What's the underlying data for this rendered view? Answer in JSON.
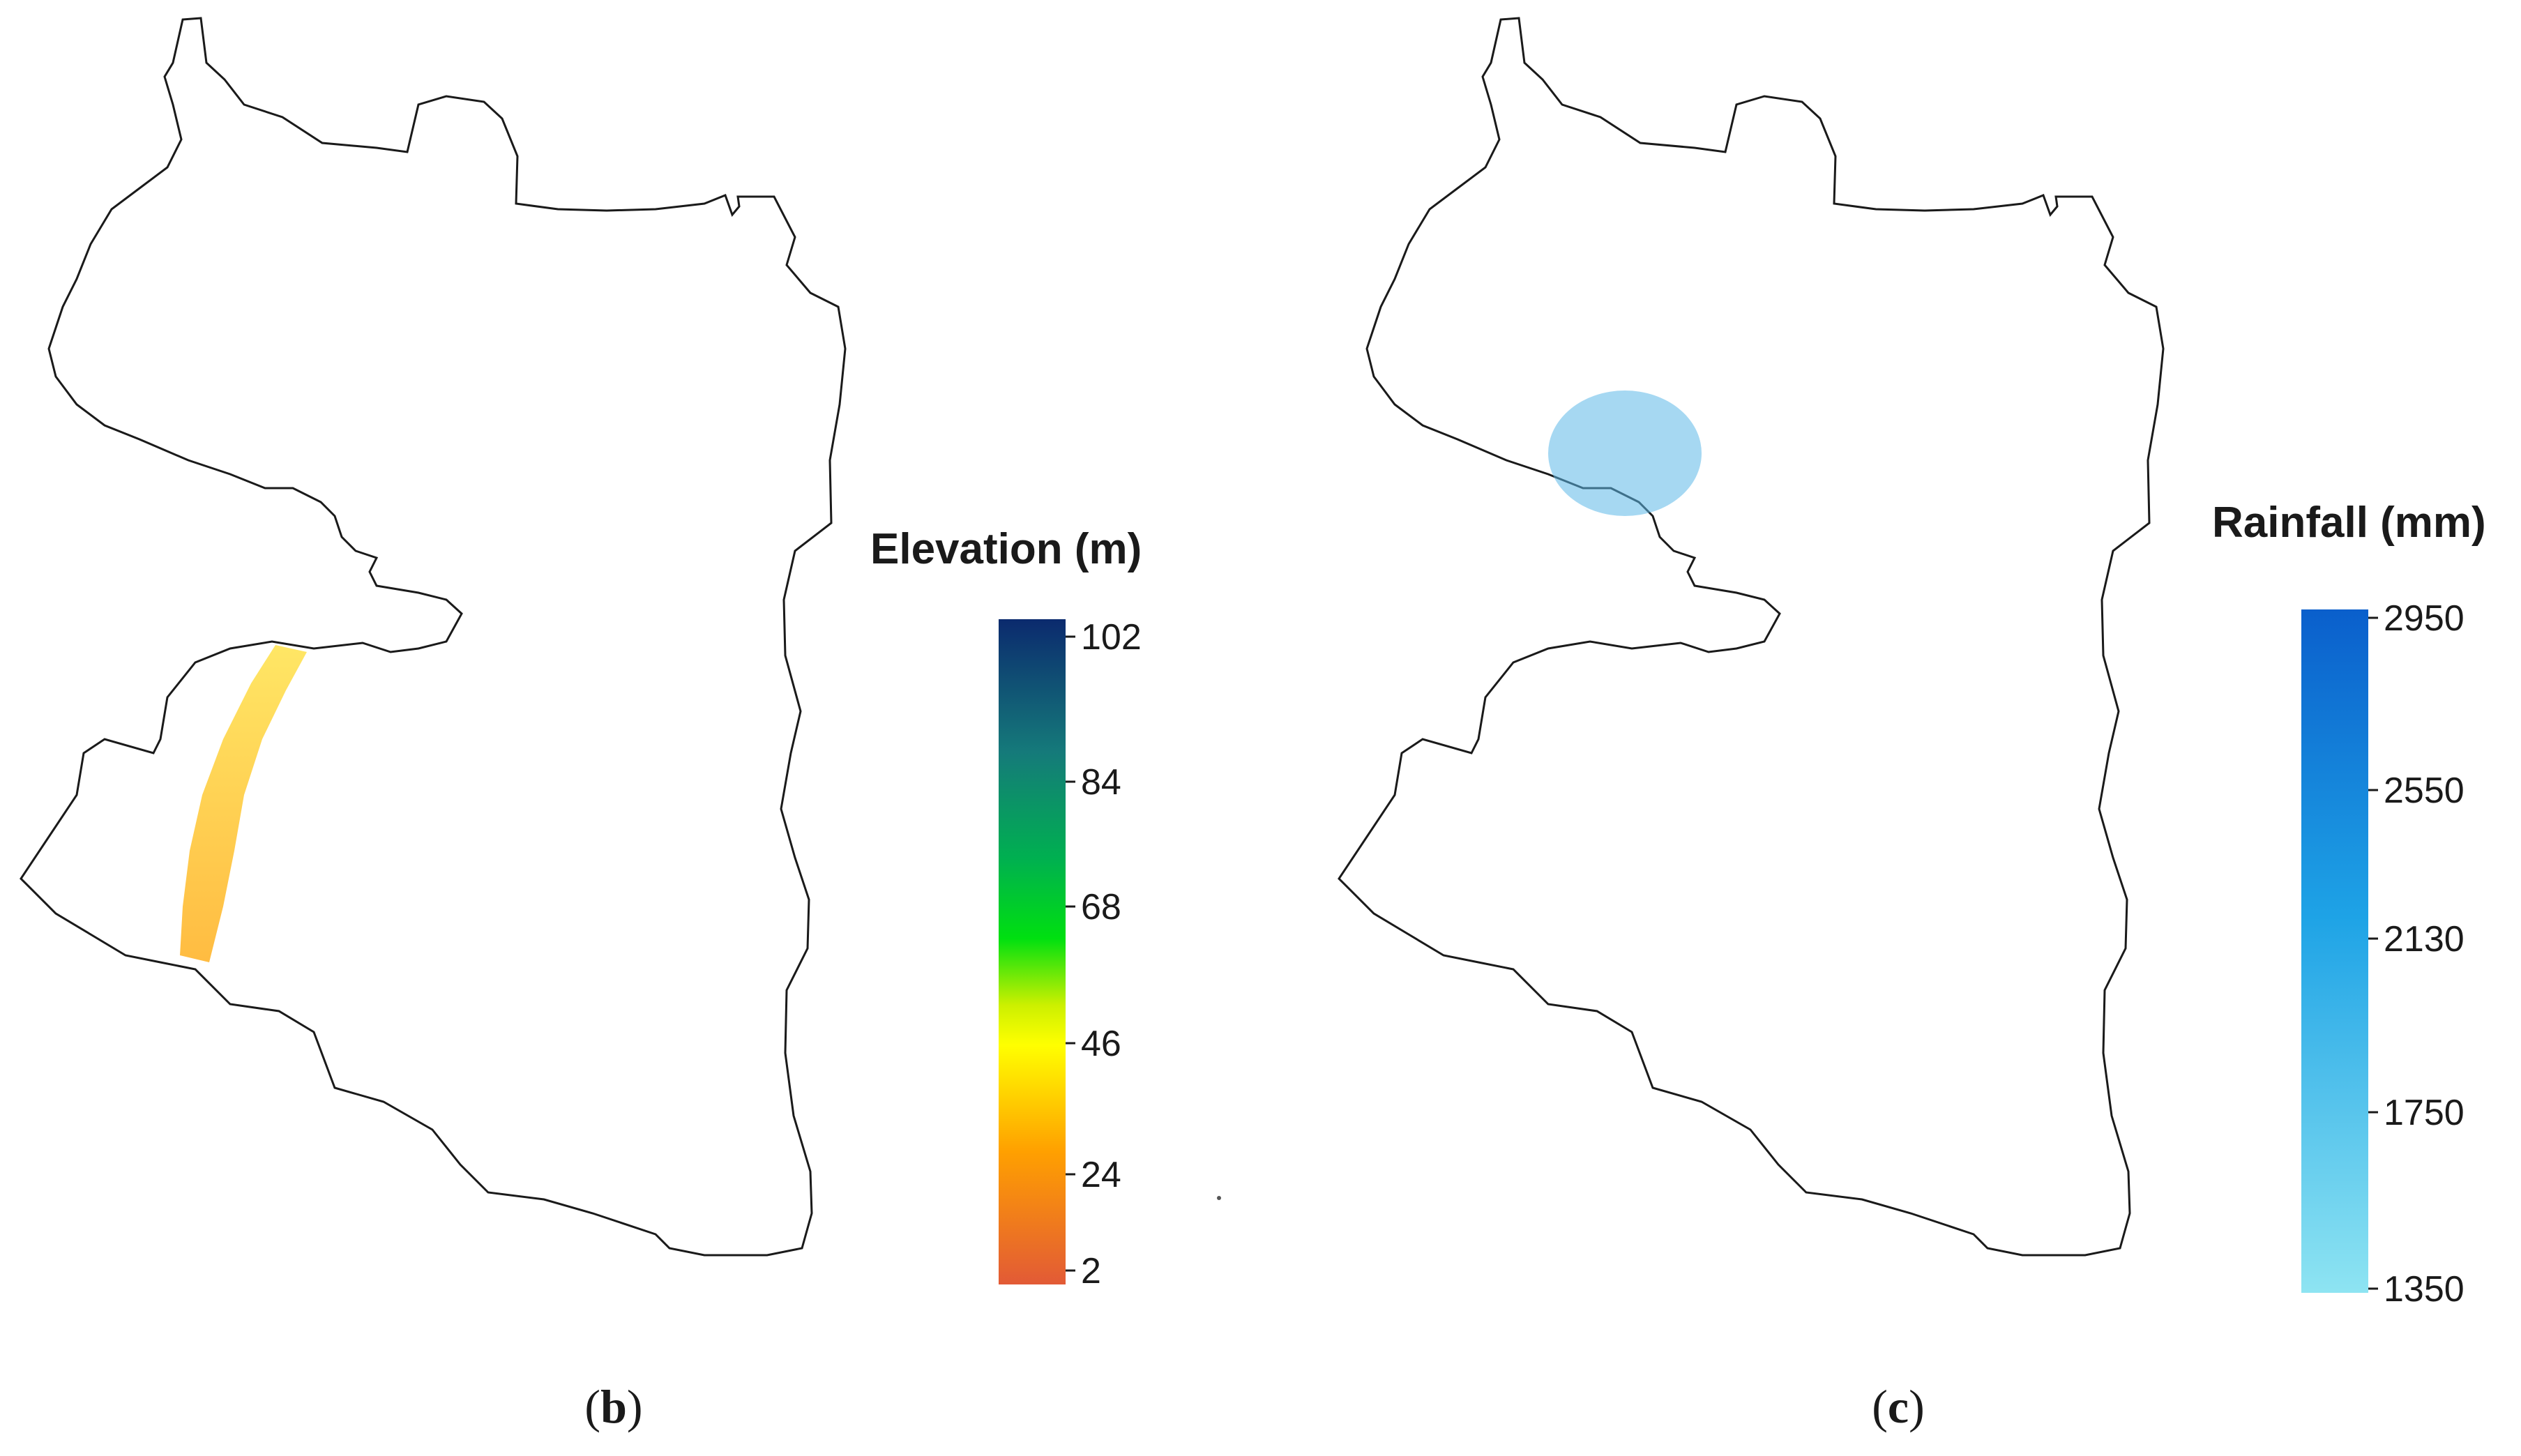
{
  "figure": {
    "panels": [
      {
        "id": "b",
        "label_open": "(",
        "label_letter": "b",
        "label_close": ")",
        "legend": {
          "title": "Elevation (m)",
          "ticks": [
            "102",
            "84",
            "68",
            "46",
            "24",
            "2"
          ],
          "colors": {
            "top": "#0b2a6e",
            "green": "#00e010",
            "yellow": "#ffff00",
            "orange": "#ffa000",
            "bottom": "#e25a36"
          }
        },
        "map_colors": {
          "north": "#0f4c7a",
          "band_green": "#1fd42a",
          "band_yellow": "#ffee00",
          "mid": "#ffa500",
          "south": "#e25a36"
        }
      },
      {
        "id": "c",
        "label_open": "(",
        "label_letter": "c",
        "label_close": ")",
        "legend": {
          "title": "Rainfall (mm)",
          "ticks": [
            "2950",
            "2550",
            "2130",
            "1750",
            "1350"
          ],
          "colors": {
            "top": "#0a5fcc",
            "mid": "#1ea3e6",
            "bottom": "#8ee4f2"
          }
        },
        "map_colors": {
          "north": "#0a64c8",
          "mid": "#1aa0e0",
          "south": "#8de0ef"
        }
      }
    ]
  }
}
